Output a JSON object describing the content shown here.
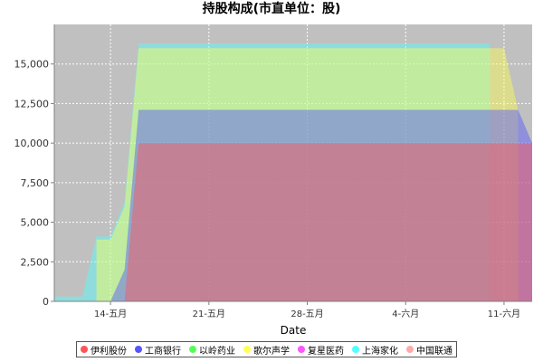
{
  "chart_data": {
    "type": "area",
    "title": "持股构成(市直单位：股)",
    "xlabel": "Date",
    "ylabel": "",
    "x_type": "date",
    "xlim": [
      "2014-05-10",
      "2014-06-13"
    ],
    "ylim": [
      0,
      17500
    ],
    "y_ticks": [
      0,
      2500,
      5000,
      7500,
      10000,
      12500,
      15000
    ],
    "y_tick_labels": [
      "0",
      "2,500",
      "5,000",
      "7,500",
      "10,000",
      "12,500",
      "15,000"
    ],
    "x_ticks": [
      "2014-05-14",
      "2014-05-21",
      "2014-05-28",
      "2014-06-04",
      "2014-06-11"
    ],
    "x_tick_labels": [
      "14-五月",
      "21-五月",
      "28-五月",
      "4-六月",
      "11-六月"
    ],
    "grid": true,
    "legend_position": "bottom",
    "background": "#c0c0c0",
    "series": [
      {
        "name": "伊利股份",
        "color": "#ff5555",
        "points": [
          [
            "2014-05-15",
            0
          ],
          [
            "2014-05-16",
            10000
          ],
          [
            "2014-06-13",
            10000
          ]
        ]
      },
      {
        "name": "工商银行",
        "color": "#5555ff",
        "points": [
          [
            "2014-05-14",
            0
          ],
          [
            "2014-05-15",
            2000
          ],
          [
            "2014-05-16",
            12100
          ],
          [
            "2014-06-12",
            12100
          ],
          [
            "2014-06-13",
            10000
          ]
        ]
      },
      {
        "name": "以岭药业",
        "color": "#55ff55",
        "points": [
          [
            "2014-05-13",
            0
          ],
          [
            "2014-05-14",
            0
          ]
        ]
      },
      {
        "name": "歌尔声学",
        "color": "#ffff55",
        "points": [
          [
            "2014-05-13",
            0
          ],
          [
            "2014-05-13",
            3900
          ],
          [
            "2014-05-14",
            3900
          ],
          [
            "2014-05-15",
            6000
          ],
          [
            "2014-05-16",
            16000
          ],
          [
            "2014-06-11",
            16000
          ],
          [
            "2014-06-12",
            12100
          ]
        ]
      },
      {
        "name": "复星医药",
        "color": "#ff55ff",
        "points": [
          [
            "2014-05-15",
            0
          ],
          [
            "2014-05-16",
            0
          ]
        ]
      },
      {
        "name": "上海家化",
        "color": "#55ffff",
        "points": [
          [
            "2014-05-10",
            300
          ],
          [
            "2014-05-12",
            300
          ],
          [
            "2014-05-13",
            4100
          ],
          [
            "2014-05-14",
            4100
          ],
          [
            "2014-05-15",
            6300
          ],
          [
            "2014-05-16",
            16300
          ],
          [
            "2014-06-10",
            16300
          ]
        ]
      },
      {
        "name": "中国联通",
        "color": "#ffaaaa",
        "points": [
          [
            "2014-05-16",
            0
          ],
          [
            "2014-05-17",
            0
          ]
        ]
      }
    ]
  }
}
